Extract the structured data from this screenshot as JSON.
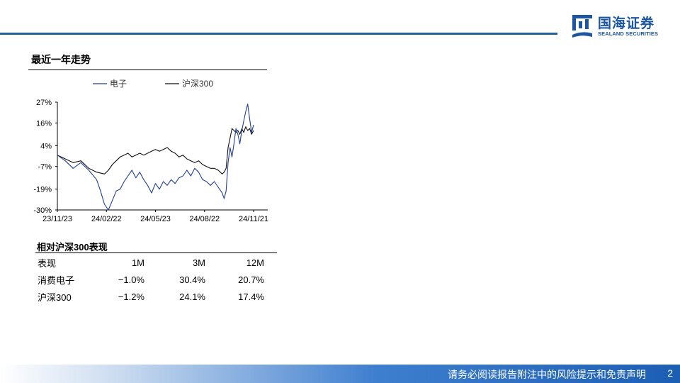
{
  "brand": {
    "name_cn": "国海证券",
    "name_en": "SEALAND SECURITIES",
    "color": "#1a55a6"
  },
  "section_title": "最近一年走势",
  "chart_data": {
    "type": "line",
    "x_ticks": [
      "23/11/23",
      "24/02/22",
      "24/05/23",
      "24/08/22",
      "24/11/21"
    ],
    "y_ticks": [
      "27%",
      "16%",
      "4%",
      "-7%",
      "-19%",
      "-30%"
    ],
    "ylim": [
      -30,
      27
    ],
    "series": [
      {
        "name": "电子",
        "color": "#1f3f99",
        "points": [
          [
            0,
            -1
          ],
          [
            4,
            -4
          ],
          [
            8,
            -8
          ],
          [
            12,
            -5
          ],
          [
            16,
            -9
          ],
          [
            20,
            -14
          ],
          [
            22,
            -20
          ],
          [
            24,
            -27
          ],
          [
            26,
            -30
          ],
          [
            28,
            -25
          ],
          [
            30,
            -20
          ],
          [
            32,
            -19
          ],
          [
            34,
            -15
          ],
          [
            36,
            -12
          ],
          [
            38,
            -9
          ],
          [
            40,
            -13
          ],
          [
            42,
            -10
          ],
          [
            44,
            -14
          ],
          [
            46,
            -17
          ],
          [
            48,
            -21
          ],
          [
            50,
            -16
          ],
          [
            52,
            -19
          ],
          [
            54,
            -15
          ],
          [
            56,
            -17
          ],
          [
            58,
            -14
          ],
          [
            60,
            -16
          ],
          [
            62,
            -13
          ],
          [
            64,
            -12
          ],
          [
            66,
            -9
          ],
          [
            68,
            -12
          ],
          [
            70,
            -8
          ],
          [
            72,
            -10
          ],
          [
            74,
            -14
          ],
          [
            76,
            -15
          ],
          [
            78,
            -17
          ],
          [
            80,
            -15
          ],
          [
            82,
            -18
          ],
          [
            84,
            -21
          ],
          [
            85,
            -24
          ],
          [
            86,
            -20
          ],
          [
            87,
            -5
          ],
          [
            88,
            3
          ],
          [
            89,
            -2
          ],
          [
            90,
            5
          ],
          [
            91,
            13
          ],
          [
            92,
            10
          ],
          [
            93,
            5
          ],
          [
            94,
            12
          ],
          [
            95,
            17
          ],
          [
            96,
            22
          ],
          [
            97,
            26
          ],
          [
            98,
            18
          ],
          [
            99,
            11
          ],
          [
            100,
            15
          ]
        ]
      },
      {
        "name": "沪深300",
        "color": "#111111",
        "points": [
          [
            0,
            -1
          ],
          [
            4,
            -3
          ],
          [
            8,
            -5
          ],
          [
            12,
            -4
          ],
          [
            16,
            -8
          ],
          [
            20,
            -10
          ],
          [
            24,
            -11
          ],
          [
            26,
            -9
          ],
          [
            28,
            -6
          ],
          [
            30,
            -4
          ],
          [
            32,
            -2
          ],
          [
            34,
            -1
          ],
          [
            36,
            0
          ],
          [
            38,
            -2
          ],
          [
            40,
            -1
          ],
          [
            42,
            0
          ],
          [
            44,
            -1
          ],
          [
            46,
            0
          ],
          [
            48,
            1
          ],
          [
            50,
            2
          ],
          [
            52,
            1
          ],
          [
            54,
            2
          ],
          [
            56,
            3
          ],
          [
            58,
            1
          ],
          [
            60,
            0
          ],
          [
            62,
            -2
          ],
          [
            64,
            -1
          ],
          [
            66,
            -3
          ],
          [
            68,
            -4
          ],
          [
            70,
            -5
          ],
          [
            72,
            -4
          ],
          [
            74,
            -6
          ],
          [
            76,
            -7
          ],
          [
            78,
            -8
          ],
          [
            80,
            -8
          ],
          [
            82,
            -9
          ],
          [
            84,
            -11
          ],
          [
            85,
            -10
          ],
          [
            86,
            -8
          ],
          [
            87,
            3
          ],
          [
            88,
            8
          ],
          [
            89,
            13
          ],
          [
            90,
            12
          ],
          [
            91,
            11
          ],
          [
            92,
            12
          ],
          [
            93,
            10
          ],
          [
            94,
            13
          ],
          [
            95,
            11
          ],
          [
            96,
            14
          ],
          [
            97,
            12
          ],
          [
            98,
            13
          ],
          [
            99,
            10
          ],
          [
            100,
            12
          ]
        ]
      }
    ]
  },
  "performance": {
    "title": "相对沪深300表现",
    "headers": [
      "表现",
      "1M",
      "3M",
      "12M"
    ],
    "rows": [
      [
        "消费电子",
        "−1.0%",
        "30.4%",
        "20.7%"
      ],
      [
        "沪深300",
        "−1.2%",
        "24.1%",
        "17.4%"
      ]
    ]
  },
  "footer": {
    "disclaimer": "请务必阅读报告附注中的风险提示和免责声明",
    "page": "2"
  }
}
